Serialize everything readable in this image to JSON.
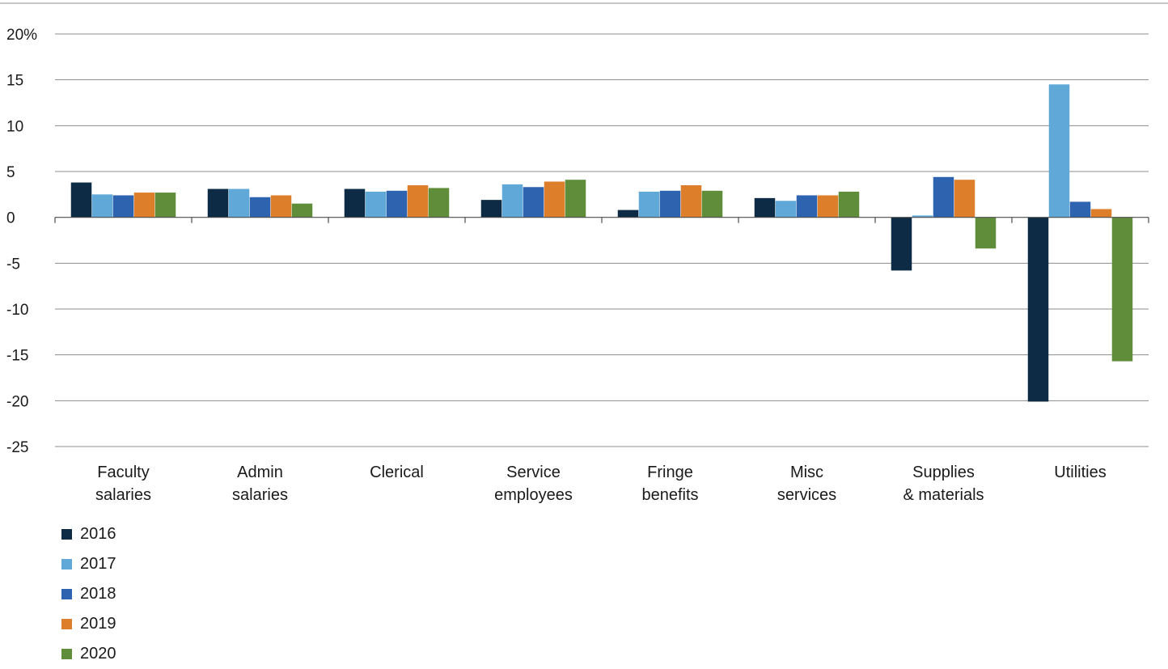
{
  "chart_data": {
    "type": "bar",
    "categories": [
      [
        "Faculty",
        "salaries"
      ],
      [
        "Admin",
        "salaries"
      ],
      [
        "Clerical"
      ],
      [
        "Service",
        "employees"
      ],
      [
        "Fringe",
        "benefits"
      ],
      [
        "Misc",
        "services"
      ],
      [
        "Supplies",
        "& materials"
      ],
      [
        "Utilities"
      ]
    ],
    "series": [
      {
        "name": "2016",
        "color": "#0d2b45",
        "values": [
          3.8,
          3.1,
          3.1,
          1.9,
          0.8,
          2.1,
          -5.8,
          -20.1
        ]
      },
      {
        "name": "2017",
        "color": "#5fa8d8",
        "values": [
          2.5,
          3.1,
          2.8,
          3.6,
          2.8,
          1.8,
          0.2,
          14.5
        ]
      },
      {
        "name": "2018",
        "color": "#2e63b0",
        "values": [
          2.4,
          2.2,
          2.9,
          3.3,
          2.9,
          2.4,
          4.4,
          1.7
        ]
      },
      {
        "name": "2019",
        "color": "#dd7f2a",
        "values": [
          2.7,
          2.4,
          3.5,
          3.9,
          3.5,
          2.4,
          4.1,
          0.9
        ]
      },
      {
        "name": "2020",
        "color": "#5f8d3a",
        "values": [
          2.7,
          1.5,
          3.2,
          4.1,
          2.9,
          2.8,
          -3.4,
          -15.7
        ]
      }
    ],
    "y_ticks": [
      "20%",
      "15",
      "10",
      "5",
      "0",
      "-5",
      "-10",
      "-15",
      "-20",
      "-25"
    ],
    "ylim": [
      -25,
      20
    ],
    "grid": true,
    "legend_position": "bottom-left"
  }
}
